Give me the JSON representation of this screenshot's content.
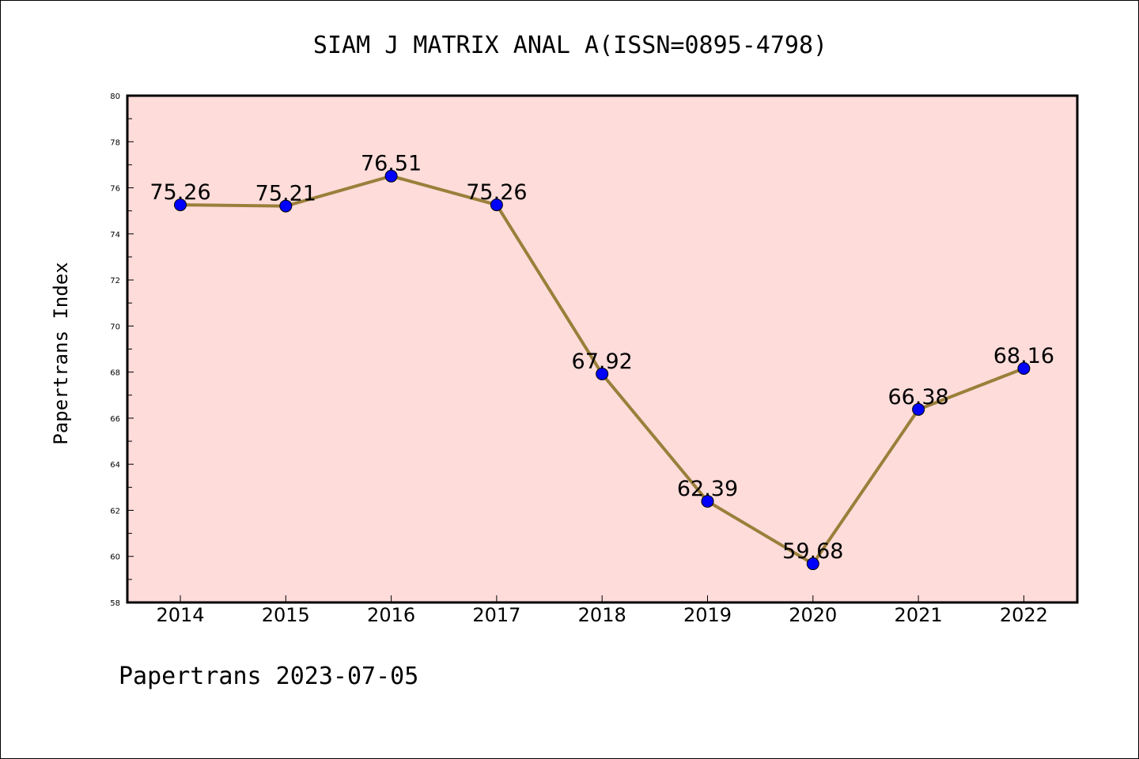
{
  "chart_data": {
    "type": "line",
    "title": "SIAM J MATRIX ANAL A(ISSN=0895-4798)",
    "ylabel": "Papertrans Index",
    "xlabel": "",
    "footer": "Papertrans 2023-07-05",
    "categories": [
      "2014",
      "2015",
      "2016",
      "2017",
      "2018",
      "2019",
      "2020",
      "2021",
      "2022"
    ],
    "values": [
      75.26,
      75.21,
      76.51,
      75.26,
      67.92,
      62.39,
      59.68,
      66.38,
      68.16
    ],
    "value_labels": [
      "75.26",
      "75.21",
      "76.51",
      "75.26",
      "67.92",
      "62.39",
      "59.68",
      "66.38",
      "68.16"
    ],
    "ylim": [
      58,
      80
    ],
    "yticks": [
      58,
      60,
      62,
      64,
      66,
      68,
      70,
      72,
      74,
      76,
      78,
      80
    ],
    "grid": false,
    "legend": "none",
    "colors": {
      "plot_background": "#FDDCDA",
      "line": "#9A7F3A",
      "marker": "#0000FF"
    }
  }
}
